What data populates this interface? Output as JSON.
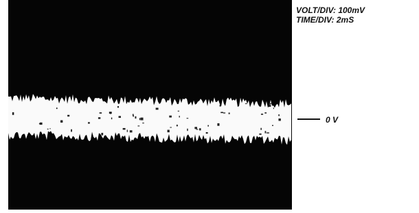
{
  "scope": {
    "volt_div": "VOLT/DIV:  100mV",
    "time_div": "TIME/DIV:  2mS",
    "zero_label": "0 V"
  }
}
